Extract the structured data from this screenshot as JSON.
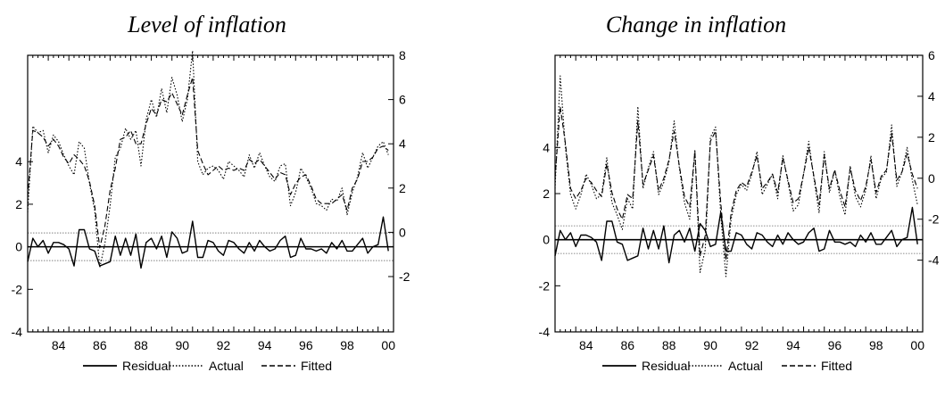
{
  "legend": {
    "items": [
      {
        "label": "Residual",
        "style": "solid"
      },
      {
        "label": "Actual",
        "style": "dotted"
      },
      {
        "label": "Fitted",
        "style": "dashed"
      }
    ]
  },
  "chart_data": [
    {
      "type": "line",
      "title": "Level of inflation",
      "x_ticks": [
        "84",
        "86",
        "88",
        "90",
        "92",
        "94",
        "96",
        "98",
        "00"
      ],
      "x_range": [
        1983.0,
        2000.75
      ],
      "x_start": 1983.0,
      "x_step": 0.25,
      "left_axis": {
        "ticks": [
          "-4",
          "-2",
          "0",
          "2",
          "4"
        ],
        "range": [
          -4,
          9
        ]
      },
      "right_axis": {
        "ticks": [
          "-2",
          "0",
          "2",
          "4",
          "6",
          "8"
        ],
        "range": [
          -4.5,
          8
        ]
      },
      "residual_band": [
        0.65,
        -0.65
      ],
      "series": [
        {
          "name": "Actual",
          "axis": "right",
          "values": [
            0.9,
            4.8,
            4.5,
            4.6,
            3.6,
            4.4,
            4.1,
            3.5,
            3.0,
            2.6,
            4.1,
            3.8,
            2.2,
            1.0,
            -1.6,
            -0.5,
            1.2,
            3.4,
            3.8,
            4.7,
            4.2,
            4.6,
            3.0,
            5.1,
            6.0,
            5.2,
            6.5,
            5.4,
            7.0,
            6.2,
            5.0,
            6.0,
            8.2,
            3.2,
            2.6,
            2.9,
            3.0,
            2.8,
            2.4,
            3.2,
            3.0,
            2.8,
            2.5,
            3.5,
            2.9,
            3.6,
            3.0,
            2.5,
            2.3,
            3.0,
            3.1,
            1.2,
            1.8,
            2.9,
            2.5,
            2.0,
            1.3,
            1.2,
            1.0,
            1.5,
            1.4,
            2.0,
            0.8,
            1.8,
            2.5,
            3.6,
            2.9,
            3.4,
            3.9,
            4.1,
            3.5
          ]
        },
        {
          "name": "Fitted",
          "axis": "right",
          "values": [
            1.6,
            4.6,
            4.5,
            4.3,
            3.9,
            4.2,
            3.9,
            3.4,
            3.1,
            3.5,
            3.3,
            3.0,
            2.3,
            1.2,
            -0.7,
            0.3,
            1.9,
            2.9,
            4.2,
            4.3,
            4.6,
            4.0,
            4.0,
            4.9,
            5.6,
            5.3,
            6.0,
            5.9,
            6.3,
            5.8,
            5.3,
            6.2,
            7.0,
            3.7,
            3.1,
            2.6,
            2.8,
            3.0,
            2.8,
            2.9,
            2.8,
            2.9,
            2.8,
            3.3,
            3.1,
            3.3,
            3.0,
            2.7,
            2.4,
            2.7,
            2.6,
            1.7,
            2.2,
            2.5,
            2.6,
            2.1,
            1.5,
            1.3,
            1.3,
            1.3,
            1.5,
            1.7,
            1.0,
            2.0,
            2.4,
            3.2,
            3.2,
            3.4,
            3.8,
            3.9,
            3.7
          ]
        },
        {
          "name": "Residual",
          "axis": "left",
          "values": [
            -0.7,
            0.4,
            0.0,
            0.3,
            -0.3,
            0.2,
            0.2,
            0.1,
            -0.1,
            -0.9,
            0.8,
            0.8,
            -0.1,
            -0.2,
            -0.9,
            -0.8,
            -0.7,
            0.5,
            -0.4,
            0.4,
            -0.4,
            0.6,
            -1.0,
            0.2,
            0.4,
            -0.1,
            0.5,
            -0.5,
            0.7,
            0.4,
            -0.3,
            -0.2,
            1.2,
            -0.5,
            -0.5,
            0.3,
            0.2,
            -0.2,
            -0.4,
            0.3,
            0.2,
            -0.1,
            -0.3,
            0.2,
            -0.2,
            0.3,
            0.0,
            -0.2,
            -0.1,
            0.3,
            0.5,
            -0.5,
            -0.4,
            0.4,
            -0.1,
            -0.1,
            -0.2,
            -0.1,
            -0.3,
            0.2,
            -0.1,
            0.3,
            -0.2,
            -0.2,
            0.1,
            0.4,
            -0.3,
            0.0,
            0.1,
            1.4,
            -0.2
          ]
        }
      ]
    },
    {
      "type": "line",
      "title": "Change in inflation",
      "x_ticks": [
        "84",
        "86",
        "88",
        "90",
        "92",
        "94",
        "96",
        "98",
        "00"
      ],
      "x_range": [
        1983.0,
        2000.75
      ],
      "x_start": 1983.0,
      "x_step": 0.25,
      "left_axis": {
        "ticks": [
          "-4",
          "-2",
          "0",
          "2",
          "4"
        ],
        "range": [
          -4,
          8
        ]
      },
      "right_axis": {
        "ticks": [
          "-4",
          "-2",
          "0",
          "2",
          "4",
          "6"
        ],
        "range": [
          -7.5,
          6
        ]
      },
      "residual_band": [
        0.6,
        -0.6
      ],
      "series": [
        {
          "name": "Actual",
          "axis": "right",
          "values": [
            -0.5,
            5.0,
            1.5,
            -0.8,
            -1.5,
            -0.8,
            0.2,
            -0.3,
            -1.0,
            -0.8,
            1.0,
            -1.2,
            -1.8,
            -2.5,
            -1.0,
            -1.5,
            3.5,
            -0.5,
            0.5,
            1.3,
            -0.8,
            -0.2,
            0.8,
            2.8,
            0.5,
            -1.2,
            -2.0,
            1.4,
            -4.6,
            -3.5,
            2.0,
            2.5,
            -1.8,
            -4.8,
            -2.0,
            -0.8,
            -0.3,
            -0.6,
            0.2,
            1.3,
            -0.8,
            -0.3,
            0.2,
            -1.0,
            1.1,
            -0.2,
            -1.6,
            -1.3,
            0.2,
            1.8,
            0.0,
            -1.7,
            1.3,
            -0.7,
            0.4,
            -0.9,
            -1.8,
            0.6,
            -0.9,
            -1.4,
            -0.6,
            1.1,
            -1.0,
            0.0,
            0.3,
            2.6,
            -0.4,
            0.3,
            1.5,
            -0.1,
            -1.3
          ]
        },
        {
          "name": "Fitted",
          "axis": "right",
          "values": [
            0.0,
            3.5,
            1.7,
            -0.5,
            -1.0,
            -0.6,
            0.0,
            -0.2,
            -0.6,
            -0.9,
            0.7,
            -0.7,
            -1.5,
            -2.0,
            -0.8,
            -1.0,
            2.8,
            -0.3,
            0.4,
            1.1,
            -0.6,
            0.0,
            0.9,
            2.3,
            0.6,
            -0.9,
            -1.4,
            1.3,
            -3.8,
            -2.8,
            1.8,
            2.3,
            -1.2,
            -4.0,
            -1.7,
            -0.6,
            -0.2,
            -0.4,
            0.3,
            1.1,
            -0.5,
            -0.2,
            0.2,
            -0.7,
            1.0,
            -0.1,
            -1.2,
            -1.0,
            0.2,
            1.5,
            0.1,
            -1.3,
            1.1,
            -0.5,
            0.4,
            -0.6,
            -1.4,
            0.5,
            -0.6,
            -1.1,
            -0.4,
            0.9,
            -0.7,
            0.1,
            0.4,
            2.2,
            -0.1,
            0.3,
            1.2,
            0.2,
            -0.5
          ]
        },
        {
          "name": "Residual",
          "axis": "left",
          "values": [
            -0.7,
            0.4,
            0.0,
            0.3,
            -0.3,
            0.2,
            0.2,
            0.1,
            -0.1,
            -0.9,
            0.8,
            0.8,
            -0.1,
            -0.2,
            -0.9,
            -0.8,
            -0.7,
            0.5,
            -0.4,
            0.4,
            -0.4,
            0.6,
            -1.0,
            0.2,
            0.4,
            -0.1,
            0.5,
            -0.5,
            0.7,
            0.4,
            -0.3,
            -0.2,
            1.2,
            -0.5,
            -0.5,
            0.3,
            0.2,
            -0.2,
            -0.4,
            0.3,
            0.2,
            -0.1,
            -0.3,
            0.2,
            -0.2,
            0.3,
            0.0,
            -0.2,
            -0.1,
            0.3,
            0.5,
            -0.5,
            -0.4,
            0.4,
            -0.1,
            -0.1,
            -0.2,
            -0.1,
            -0.3,
            0.2,
            -0.1,
            0.3,
            -0.2,
            -0.2,
            0.1,
            0.4,
            -0.3,
            0.0,
            0.1,
            1.4,
            -0.2
          ]
        }
      ]
    }
  ]
}
